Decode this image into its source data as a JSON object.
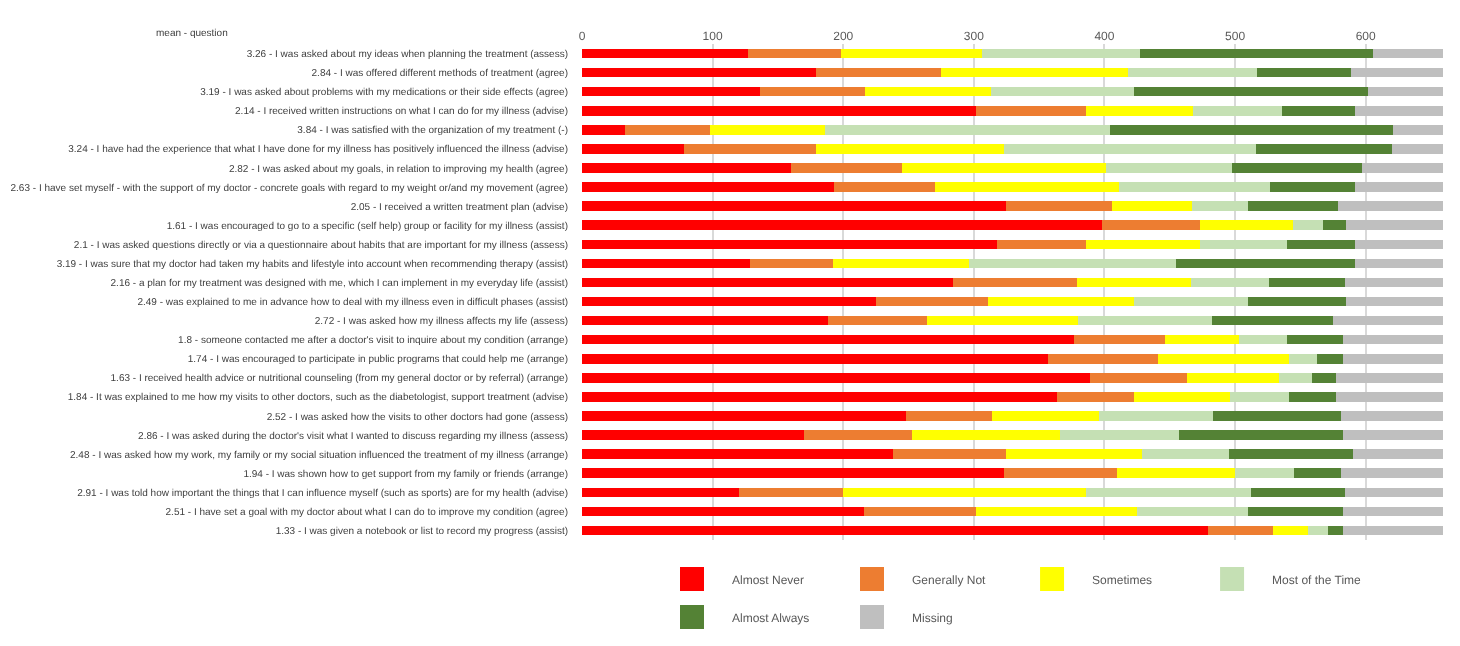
{
  "chart_data": {
    "type": "bar",
    "orientation": "horizontal",
    "stacked": true,
    "ylabel": "mean - question",
    "categories": [
      "3.26 - I was asked about my ideas when planning the treatment (assess)",
      "2.84 - I was offered different methods of treatment (agree)",
      "3.19 - I was asked about problems with my medications or their side effects (agree)",
      "2.14 - I received written instructions on what I can do for my illness (advise)",
      "3.84 - I was satisfied with the organization of my treatment (-)",
      "3.24 - I have had the experience that what I have done for my illness has positively influenced the illness (advise)",
      "2.82 - I was asked about my goals, in relation to improving my health (agree)",
      "2.63 - I have set myself - with the support of my doctor - concrete goals with regard to my weight or/and my movement (agree)",
      "2.05 - I received a written treatment plan (advise)",
      "1.61 - I was encouraged to go to a specific (self help) group or facility for my illness (assist)",
      "2.1 - I was asked questions directly or via a questionnaire about habits that are important for my illness (assess)",
      "3.19 - I was sure that my doctor had taken my habits and lifestyle into account when recommending therapy (assist)",
      "2.16 - a plan for my treatment was designed with me, which I can implement in my everyday life (assist)",
      "2.49 - was explained to me in advance how to deal with my illness even in difficult phases (assist)",
      "2.72 - I was asked how my illness affects my life (assess)",
      "1.8 - someone contacted me after a doctor's visit to inquire about my condition (arrange)",
      "1.74 - I was encouraged to participate in public programs that could help me (arrange)",
      "1.63 - I received health advice or nutritional counseling (from my general doctor or by referral) (arrange)",
      "1.84 - It was explained to me how my visits to other doctors, such as the diabetologist, support treatment (advise)",
      "2.52 - I was asked how the visits to other doctors had gone (assess)",
      "2.86 - I was asked during the doctor's visit what I wanted to discuss regarding my illness (assess)",
      "2.48 - I was asked how my work, my family or my social situation influenced the treatment of my illness (arrange)",
      "1.94 - I was shown how to get support from my family or friends (arrange)",
      "2.91 - I was told how important the things that I can influence myself (such as sports) are for my health (advise)",
      "2.51 - I have set a goal with my doctor about what I can do to improve my condition (agree)",
      "1.33 - I was given a notebook or list to record my progress (assist)"
    ],
    "series": [
      {
        "name": "Almost Never",
        "color": "#ff0000",
        "values": [
          127,
          179,
          136,
          302,
          33,
          78,
          160,
          193,
          325,
          398,
          318,
          129,
          284,
          225,
          188,
          377,
          357,
          389,
          364,
          248,
          170,
          238,
          323,
          120,
          216,
          479
        ]
      },
      {
        "name": "Generally Not",
        "color": "#ed7d31",
        "values": [
          71,
          96,
          81,
          84,
          65,
          101,
          85,
          77,
          81,
          75,
          68,
          63,
          95,
          86,
          76,
          69,
          84,
          74,
          59,
          66,
          83,
          87,
          87,
          80,
          86,
          50
        ]
      },
      {
        "name": "Sometimes",
        "color": "#ffff00",
        "values": [
          108,
          143,
          96,
          82,
          88,
          144,
          156,
          141,
          61,
          71,
          87,
          104,
          87,
          112,
          116,
          57,
          100,
          71,
          73,
          82,
          113,
          104,
          90,
          186,
          123,
          27
        ]
      },
      {
        "name": "Most of the Time",
        "color": "#c5e0b4",
        "values": [
          121,
          99,
          110,
          68,
          218,
          193,
          97,
          116,
          43,
          23,
          67,
          159,
          60,
          87,
          102,
          37,
          22,
          25,
          45,
          87,
          91,
          66,
          45,
          126,
          85,
          15
        ]
      },
      {
        "name": "Almost Always",
        "color": "#548235",
        "values": [
          179,
          72,
          179,
          56,
          217,
          104,
          99,
          65,
          69,
          18,
          52,
          137,
          58,
          75,
          93,
          43,
          20,
          18,
          36,
          98,
          126,
          95,
          36,
          72,
          73,
          12
        ]
      },
      {
        "name": "Missing",
        "color": "#bfbfbf",
        "values": [
          53,
          70,
          57,
          67,
          38,
          39,
          62,
          67,
          80,
          74,
          67,
          67,
          75,
          74,
          84,
          76,
          76,
          82,
          82,
          78,
          76,
          69,
          78,
          75,
          76,
          76
        ]
      }
    ],
    "xlim": [
      0,
      660
    ],
    "xticks": [
      0,
      100,
      200,
      300,
      400,
      500,
      600
    ],
    "grid": "x",
    "legend": "bottom"
  }
}
